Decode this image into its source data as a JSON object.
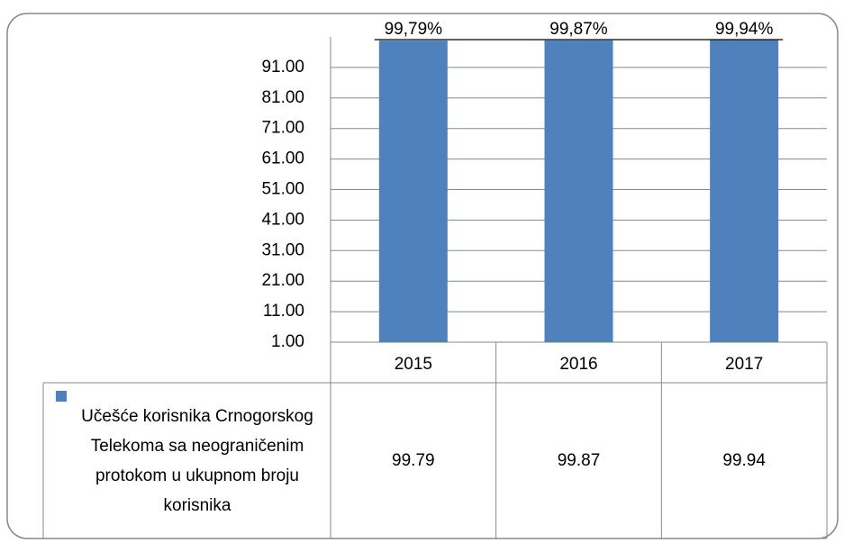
{
  "chart_data": {
    "type": "bar",
    "categories": [
      "2015",
      "2016",
      "2017"
    ],
    "series": [
      {
        "name": "Učešće korisnika Crnogorskog Telekoma sa neograničenim protokom u ukupnom broju korisnika",
        "color": "#4f81bd",
        "values": [
          99.79,
          99.87,
          99.94
        ],
        "value_labels": [
          "99,79%",
          "99,87%",
          "99,94%"
        ]
      }
    ],
    "ylim": [
      1,
      101
    ],
    "yticks": [
      {
        "value": 1,
        "label": "1.00"
      },
      {
        "value": 11,
        "label": "11.00"
      },
      {
        "value": 21,
        "label": "21.00"
      },
      {
        "value": 31,
        "label": "31.00"
      },
      {
        "value": 41,
        "label": "41.00"
      },
      {
        "value": 51,
        "label": "51.00"
      },
      {
        "value": 61,
        "label": "61.00"
      },
      {
        "value": 71,
        "label": "71.00"
      },
      {
        "value": 81,
        "label": "81.00"
      },
      {
        "value": 91,
        "label": "91.00"
      }
    ],
    "grid": true,
    "legend": "table"
  }
}
